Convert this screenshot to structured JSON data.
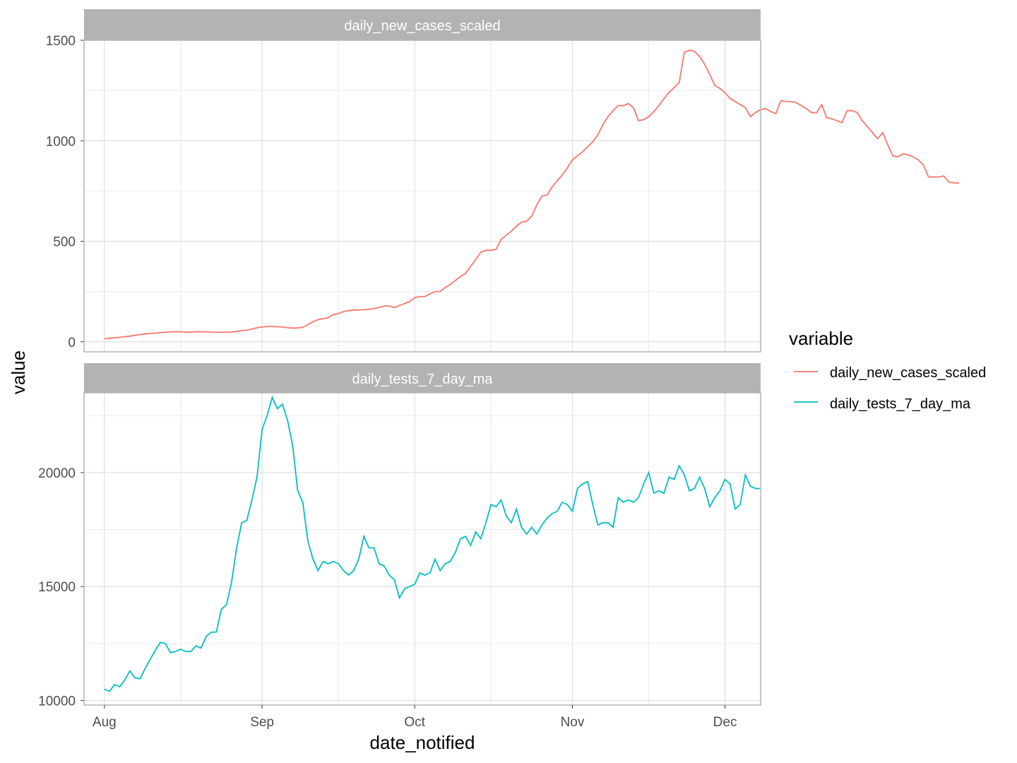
{
  "chart_data": {
    "type": "line",
    "facet_layout": "stacked, free y scales, shared x axis",
    "xlabel": "date_notified",
    "ylabel": "value",
    "x_ticks": [
      "Aug",
      "Sep",
      "Oct",
      "Nov",
      "Dec"
    ],
    "x_range": [
      "2020-07-28",
      "2020-12-08"
    ],
    "grid": true,
    "legend": {
      "title": "variable",
      "placement": "right",
      "entries": [
        {
          "label": "daily_new_cases_scaled",
          "color": "#F8766D"
        },
        {
          "label": "daily_tests_7_day_ma",
          "color": "#00BFC4"
        }
      ]
    },
    "x_start_date": "2020-08-01",
    "x_step_days": 1,
    "panels": [
      {
        "strip": "daily_new_cases_scaled",
        "color": "#F8766D",
        "ylim": [
          -50,
          1500
        ],
        "y_ticks": [
          "0",
          "500",
          "1000",
          "1500"
        ],
        "y_tick_values": [
          0,
          500,
          1000,
          1500
        ],
        "values": [
          15,
          17,
          20,
          22,
          25,
          28,
          32,
          36,
          39,
          41,
          43,
          45,
          47,
          49,
          50,
          50,
          48,
          48,
          50,
          50,
          50,
          48,
          47,
          47,
          48,
          48,
          52,
          55,
          58,
          63,
          70,
          74,
          76,
          76,
          75,
          74,
          70,
          68,
          69,
          72,
          85,
          100,
          110,
          115,
          120,
          135,
          140,
          150,
          155,
          158,
          158,
          160,
          162,
          165,
          170,
          178,
          178,
          170,
          180,
          190,
          200,
          220,
          225,
          225,
          238,
          250,
          250,
          270,
          285,
          305,
          325,
          340,
          375,
          410,
          445,
          455,
          455,
          460,
          510,
          530,
          550,
          575,
          595,
          600,
          625,
          680,
          725,
          730,
          770,
          800,
          830,
          865,
          905,
          925,
          945,
          970,
          995,
          1030,
          1080,
          1120,
          1150,
          1175,
          1175,
          1185,
          1165,
          1100,
          1105,
          1120,
          1145,
          1175,
          1210,
          1240,
          1265,
          1290,
          1440,
          1450,
          1445,
          1420,
          1380,
          1330,
          1275,
          1260,
          1240,
          1210,
          1195,
          1180,
          1165,
          1120,
          1140,
          1155,
          1160,
          1145,
          1135,
          1200,
          1195,
          1195,
          1190,
          1175,
          1160,
          1140,
          1140,
          1180,
          1115,
          1110,
          1100,
          1090,
          1150,
          1150,
          1140,
          1100,
          1070,
          1040,
          1010,
          1040,
          980,
          925,
          920,
          935,
          930,
          920,
          905,
          880,
          820,
          820,
          820,
          825,
          795,
          790,
          790
        ]
      },
      {
        "strip": "daily_tests_7_day_ma",
        "color": "#00BFC4",
        "ylim": [
          9800,
          23500
        ],
        "y_ticks": [
          "10000",
          "15000",
          "20000"
        ],
        "y_tick_values": [
          10000,
          15000,
          20000
        ],
        "values": [
          10500,
          10400,
          10700,
          10600,
          10900,
          11300,
          11000,
          10950,
          11400,
          11800,
          12200,
          12550,
          12500,
          12100,
          12150,
          12250,
          12150,
          12150,
          12400,
          12300,
          12800,
          13000,
          13000,
          14000,
          14200,
          15200,
          16700,
          17800,
          17900,
          18800,
          19800,
          21900,
          22500,
          23300,
          22800,
          23000,
          22300,
          21200,
          19200,
          18700,
          17000,
          16200,
          15700,
          16100,
          16000,
          16100,
          16000,
          15700,
          15500,
          15700,
          16200,
          17200,
          16700,
          16700,
          16000,
          15900,
          15500,
          15300,
          14500,
          14900,
          15000,
          15100,
          15600,
          15500,
          15600,
          16200,
          15700,
          16000,
          16100,
          16500,
          17100,
          17200,
          16800,
          17400,
          17100,
          17800,
          18600,
          18500,
          18800,
          18100,
          17800,
          18400,
          17600,
          17300,
          17600,
          17300,
          17700,
          18000,
          18200,
          18300,
          18700,
          18600,
          18300,
          19300,
          19500,
          19600,
          18600,
          17700,
          17800,
          17800,
          17600,
          18900,
          18700,
          18800,
          18700,
          18900,
          19500,
          20000,
          19100,
          19200,
          19100,
          19800,
          19700,
          20300,
          19900,
          19200,
          19300,
          19800,
          19300,
          18500,
          18900,
          19200,
          19700,
          19500,
          18400,
          18600,
          19900,
          19400,
          19300,
          19300
        ]
      }
    ]
  }
}
